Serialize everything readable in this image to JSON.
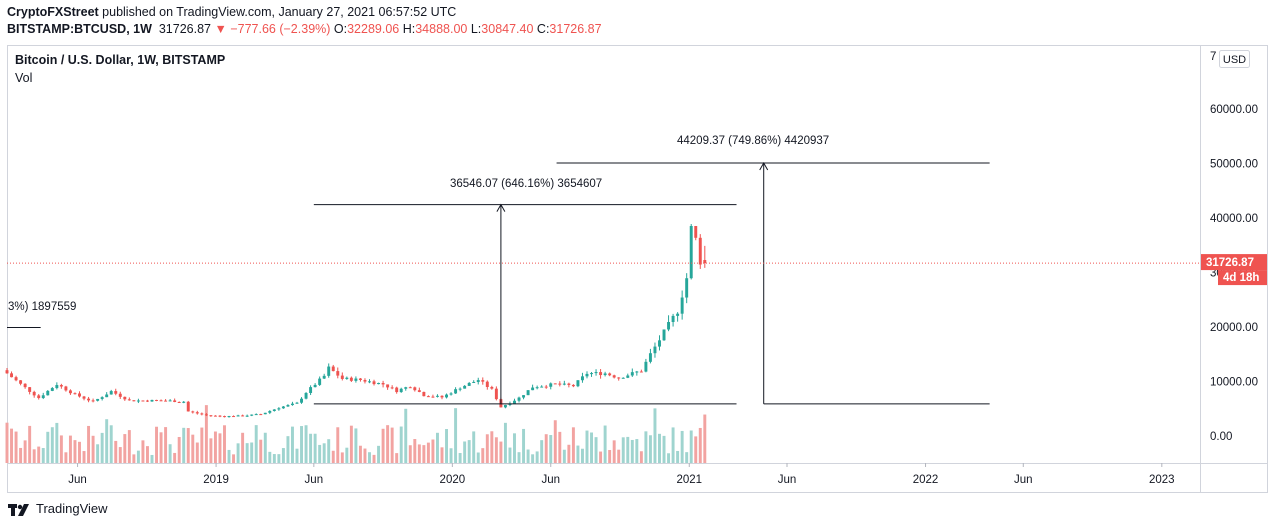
{
  "header": {
    "author": "CryptoFXStreet",
    "published_text": "published on TradingView.com, January 27, 2021 06:57:52 UTC",
    "symbol": "BITSTAMP:BTCUSD, 1W",
    "last": "31726.87",
    "change": "−777.66 (−2.39%)",
    "o_label": "O:",
    "o_value": "32289.06",
    "h_label": "H:",
    "h_value": "34888.00",
    "l_label": "L:",
    "l_value": "30847.40",
    "c_label": "C:",
    "c_value": "31726.87"
  },
  "legend": {
    "title": "Bitcoin / U.S. Dollar, 1W, BITSTAMP",
    "vol": "Vol"
  },
  "currency_badge": "USD",
  "price_label": "31726.87",
  "countdown_label": "4d 18h",
  "annotations": {
    "left_partial": "3%) 1897559",
    "measure_1": "36546.07 (646.16%) 3654607",
    "measure_2": "44209.37 (749.86%) 4420937"
  },
  "footer": {
    "brand": "TradingView"
  },
  "colors": {
    "up": "#26a69a",
    "down": "#ef5350",
    "vol_up": "#9fd4cf",
    "vol_down": "#f2a3a1",
    "text": "#131722"
  },
  "chart_data": {
    "type": "candlestick",
    "title": "Bitcoin / U.S. Dollar, 1W, BITSTAMP",
    "ylim": [
      -5000,
      70000
    ],
    "y_ticks": [
      0,
      10000,
      20000,
      30000,
      40000,
      50000,
      60000
    ],
    "y_tick_labels": [
      "0.00",
      "10000.00",
      "20000.00",
      "30000.00",
      "40000.00",
      "50000.00",
      "60000.00"
    ],
    "y_top_partial": "7",
    "x_ticks": [
      "2018-06-01",
      "2019-01-01",
      "2019-06-01",
      "2020-01-01",
      "2020-06-01",
      "2021-01-01",
      "2021-06-01",
      "2022-01-01",
      "2022-06-01",
      "2023-01-01"
    ],
    "x_tick_labels": [
      "Jun",
      "2019",
      "Jun",
      "2020",
      "Jun",
      "2021",
      "Jun",
      "2022",
      "Jun",
      "2023"
    ],
    "x_range": [
      "2018-02-12",
      "2023-03-01"
    ],
    "price_weeks": [
      [
        "2018-02-12",
        11500
      ],
      [
        "2018-03-05",
        9500
      ],
      [
        "2018-04-02",
        7000
      ],
      [
        "2018-04-30",
        9500
      ],
      [
        "2018-05-28",
        7600
      ],
      [
        "2018-06-25",
        6300
      ],
      [
        "2018-07-23",
        8200
      ],
      [
        "2018-08-20",
        6500
      ],
      [
        "2018-09-17",
        6500
      ],
      [
        "2018-10-15",
        6500
      ],
      [
        "2018-11-12",
        6300
      ],
      [
        "2018-11-19",
        4500
      ],
      [
        "2018-12-17",
        3800
      ],
      [
        "2019-01-14",
        3600
      ],
      [
        "2019-02-11",
        3700
      ],
      [
        "2019-03-11",
        4000
      ],
      [
        "2019-04-08",
        5200
      ],
      [
        "2019-05-06",
        6000
      ],
      [
        "2019-05-20",
        8000
      ],
      [
        "2019-06-17",
        11000
      ],
      [
        "2019-06-24",
        12500
      ],
      [
        "2019-07-15",
        10500
      ],
      [
        "2019-08-12",
        10300
      ],
      [
        "2019-09-16",
        9500
      ],
      [
        "2019-10-07",
        8300
      ],
      [
        "2019-10-28",
        9200
      ],
      [
        "2019-11-18",
        7500
      ],
      [
        "2019-12-16",
        7100
      ],
      [
        "2020-01-13",
        8900
      ],
      [
        "2020-02-10",
        10300
      ],
      [
        "2020-03-02",
        8500
      ],
      [
        "2020-03-16",
        5300
      ],
      [
        "2020-04-13",
        7000
      ],
      [
        "2020-05-04",
        9000
      ],
      [
        "2020-06-08",
        9500
      ],
      [
        "2020-07-06",
        9200
      ],
      [
        "2020-07-27",
        11500
      ],
      [
        "2020-08-24",
        11500
      ],
      [
        "2020-09-14",
        10700
      ],
      [
        "2020-10-19",
        12000
      ],
      [
        "2020-11-02",
        15000
      ],
      [
        "2020-11-23",
        19000
      ],
      [
        "2020-12-14",
        23000
      ],
      [
        "2020-12-28",
        29000
      ],
      [
        "2021-01-04",
        38000
      ],
      [
        "2021-01-11",
        36000
      ],
      [
        "2021-01-18",
        32200
      ],
      [
        "2021-01-25",
        31726.87
      ]
    ],
    "last_candle": {
      "open": 32289.06,
      "high": 34888.0,
      "low": 30847.4,
      "close": 31726.87
    },
    "measure_lines": [
      {
        "from_date": "2020-03-16",
        "from_price": 5900,
        "to_price": 42450,
        "label": "36546.07 (646.16%) 3654607"
      },
      {
        "from_date": "2021-04-26",
        "from_price": 5900,
        "to_price": 50100,
        "label": "44209.37 (749.86%) 4420937"
      }
    ],
    "horizontal_levels": [
      {
        "price": 42450,
        "from": "2019-06-01",
        "to": "2021-03-15"
      },
      {
        "price": 5900,
        "from": "2019-06-01",
        "to": "2021-03-15"
      },
      {
        "price": 50100,
        "from": "2020-06-10",
        "to": "2022-04-10"
      },
      {
        "price": 5900,
        "from": "2021-04-26",
        "to": "2022-04-10"
      },
      {
        "price": 19900,
        "from": "2018-02-12",
        "to": "2018-04-05"
      }
    ]
  }
}
